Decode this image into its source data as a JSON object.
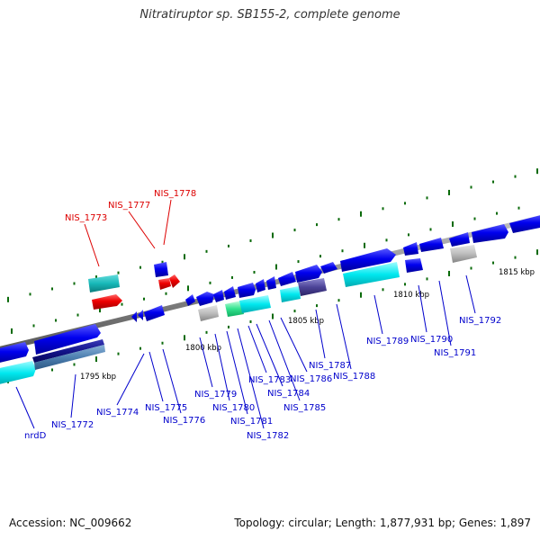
{
  "title": "Nitratiruptor sp. SB155-2, complete genome",
  "footer": {
    "accession": "Accession: NC_009662",
    "summary": "Topology: circular; Length: 1,877,931 bp; Genes: 1,897"
  },
  "colors": {
    "gene_blue": "#0000dd",
    "gene_red": "#ee0000",
    "label_blue": "#0000cc",
    "label_red": "#dd0000",
    "tick_green": "#006600",
    "backbone": "#888888"
  },
  "scale_labels": [
    "1795 kbp",
    "1800 kbp",
    "1805 kbp",
    "1810 kbp",
    "1815 kbp"
  ],
  "genes": [
    {
      "name": "nrdD",
      "color": "blue"
    },
    {
      "name": "NIS_1772",
      "color": "blue"
    },
    {
      "name": "NIS_1773",
      "color": "red"
    },
    {
      "name": "NIS_1774",
      "color": "blue"
    },
    {
      "name": "NIS_1775",
      "color": "blue"
    },
    {
      "name": "NIS_1776",
      "color": "blue"
    },
    {
      "name": "NIS_1777",
      "color": "red"
    },
    {
      "name": "NIS_1778",
      "color": "red"
    },
    {
      "name": "NIS_1779",
      "color": "blue"
    },
    {
      "name": "NIS_1780",
      "color": "blue"
    },
    {
      "name": "NIS_1781",
      "color": "blue"
    },
    {
      "name": "NIS_1782",
      "color": "blue"
    },
    {
      "name": "NIS_1783",
      "color": "blue"
    },
    {
      "name": "NIS_1784",
      "color": "blue"
    },
    {
      "name": "NIS_1785",
      "color": "blue"
    },
    {
      "name": "NIS_1786",
      "color": "blue"
    },
    {
      "name": "NIS_1787",
      "color": "blue"
    },
    {
      "name": "NIS_1788",
      "color": "blue"
    },
    {
      "name": "NIS_1789",
      "color": "blue"
    },
    {
      "name": "NIS_1790",
      "color": "blue"
    },
    {
      "name": "NIS_1791",
      "color": "blue"
    },
    {
      "name": "NIS_1792",
      "color": "blue"
    }
  ]
}
